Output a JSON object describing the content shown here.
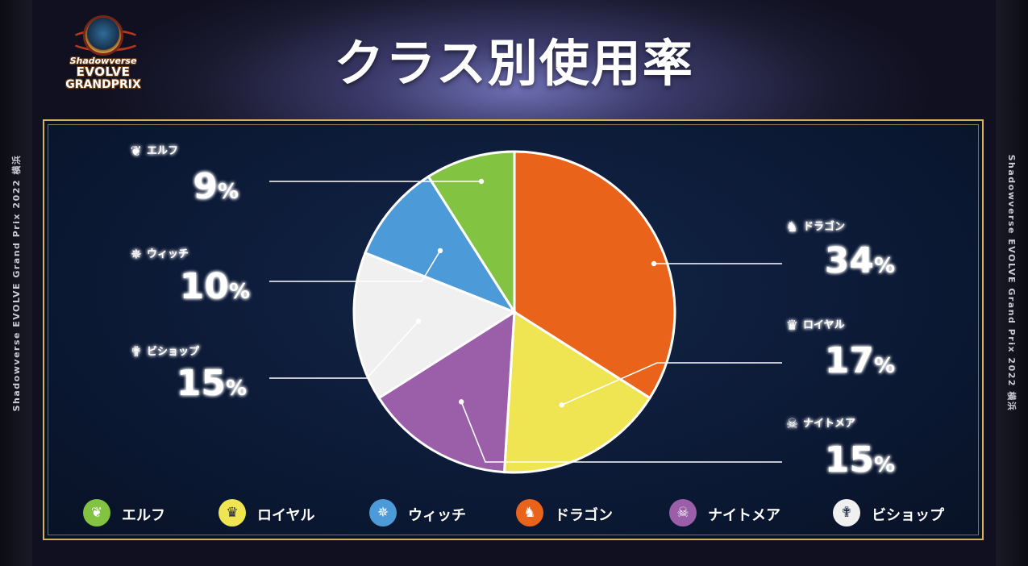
{
  "event": {
    "logo_line1": "Shadowverse",
    "logo_line2": "EVOLVE",
    "logo_line3": "GRANDPRIX",
    "side_caption": "Shadowverse EVOLVE Grand Prix 2022 横浜"
  },
  "title": "クラス別使用率",
  "chart_data": {
    "type": "pie",
    "title": "クラス別使用率",
    "slices": [
      {
        "label": "ドラゴン",
        "value": 34,
        "display": "34%",
        "color": "#e9631b",
        "icon": "dragon-icon"
      },
      {
        "label": "ロイヤル",
        "value": 17,
        "display": "17%",
        "color": "#efe451",
        "icon": "crown-icon"
      },
      {
        "label": "ナイトメア",
        "value": 15,
        "display": "15%",
        "color": "#9a5fa8",
        "icon": "ghost-icon"
      },
      {
        "label": "ビショップ",
        "value": 15,
        "display": "15%",
        "color": "#f0f0f0",
        "icon": "wings-icon"
      },
      {
        "label": "ウィッチ",
        "value": 10,
        "display": "10%",
        "color": "#4d9ad9",
        "icon": "magic-circle-icon"
      },
      {
        "label": "エルフ",
        "value": 9,
        "display": "9%",
        "color": "#82c341",
        "icon": "leaf-icon"
      }
    ],
    "start": "top",
    "direction": "clockwise"
  },
  "legend": {
    "items": [
      {
        "label": "エルフ",
        "color": "#82c341",
        "icon": "leaf-icon",
        "glyph": "❦"
      },
      {
        "label": "ロイヤル",
        "color": "#efe451",
        "icon": "crown-icon",
        "glyph": "♛"
      },
      {
        "label": "ウィッチ",
        "color": "#4d9ad9",
        "icon": "magic-circle-icon",
        "glyph": "✵"
      },
      {
        "label": "ドラゴン",
        "color": "#e9631b",
        "icon": "dragon-icon",
        "glyph": "♞"
      },
      {
        "label": "ナイトメア",
        "color": "#9a5fa8",
        "icon": "ghost-icon",
        "glyph": "☠"
      },
      {
        "label": "ビショップ",
        "color": "#f0f0f0",
        "icon": "wings-icon",
        "glyph": "✟"
      }
    ]
  },
  "colors": {
    "label_text": "#ffffff",
    "label_glow": "#3fd0d8",
    "leader_line": "#ffffff",
    "panel_border": "#d7b254"
  }
}
